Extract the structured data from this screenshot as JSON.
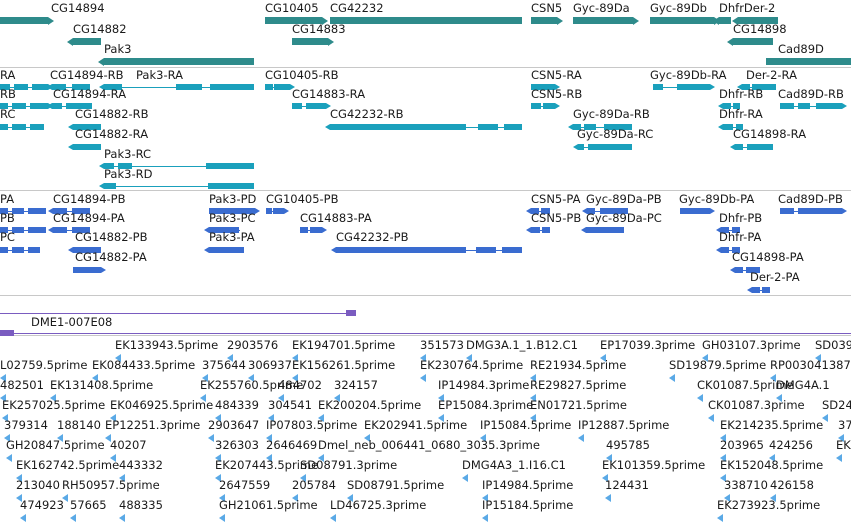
{
  "colors": {
    "gene": "#2e8b8b",
    "transcript": "#1aa0bc",
    "protein": "#3a6cd0",
    "clone": "#7a5cc0",
    "est": "#5aa9e6",
    "separator": "#c8c8c8",
    "text": "#1a1a1a"
  },
  "track_genes": {
    "labels": [
      "CG14894",
      "CG14882",
      "Pak3",
      "CG10405",
      "CG42232",
      "CG14883",
      "CSN5",
      "Gyc-89Da",
      "Gyc-89Db",
      "DhfrDer-2",
      "CG14898",
      "Cad89D"
    ]
  },
  "track_transcripts": {
    "labels": [
      "RA",
      "CG14894-RB",
      "Pak3-RA",
      "CG10405-RB",
      "CSN5-RA",
      "Gyc-89Db-RA",
      "Der-2-RA",
      "RB",
      "CG14894-RA",
      "CG14883-RA",
      "CSN5-RB",
      "Dhfr-RB",
      "Cad89D-RB",
      "RC",
      "CG14882-RB",
      "CG42232-RB",
      "Gyc-89Da-RB",
      "Dhfr-RA",
      "CG14882-RA",
      "Gyc-89Da-RC",
      "CG14898-RA",
      "Pak3-RC",
      "Pak3-RD"
    ]
  },
  "track_proteins": {
    "labels": [
      "PA",
      "CG14894-PB",
      "Pak3-PD",
      "CG10405-PB",
      "CSN5-PA",
      "Gyc-89Da-PB",
      "Gyc-89Db-PA",
      "Cad89D-PB",
      "PB",
      "CG14894-PA",
      "Pak3-PC",
      "CG14883-PA",
      "CSN5-PB",
      "Gyc-89Da-PC",
      "Dhfr-PB",
      "PC",
      "CG14882-PB",
      "Pak3-PA",
      "CG42232-PB",
      "Dhfr-PA",
      "CG14882-PA",
      "CG14898-PA",
      "Der-2-PA"
    ]
  },
  "track_clones": {
    "labels": [
      "DME1-007E08"
    ]
  },
  "track_ests": {
    "labels": [
      "EK133943.5prime",
      "2903576",
      "EK194701.5prime",
      "351573",
      "DMG3A.1_1.B12.C1",
      "EP17039.3prime",
      "GH03107.3prime",
      "SD039",
      "L02759.5prime",
      "EK084433.5prime",
      "375644",
      "306937",
      "EK156261.5prime",
      "EK230764.5prime",
      "RE21934.5prime",
      "SD19879.5prime",
      "RP003041387",
      "482501",
      "EK131408.5prime",
      "EK255760.5prime",
      "484702",
      "324157",
      "IP14984.3prime",
      "RE29827.5prime",
      "CK01087.5prime",
      "DMG4A.1",
      "EK257025.5prime",
      "EK046925.5prime",
      "484339",
      "304541",
      "EK200204.5prime",
      "EP15084.3prime",
      "EN01721.5prime",
      "CK01087.3prime",
      "SD24",
      "379314",
      "188140",
      "EP12251.3prime",
      "2903647",
      "IP07803.5prime",
      "EK202941.5prime",
      "IP15084.5prime",
      "IP12887.5prime",
      "EK214235.5prime",
      "37",
      "GH20847.5prime",
      "40207",
      "326303",
      "2646469",
      "Dmel_neb_006441_0680_3035.3prime",
      "495785",
      "203965",
      "424256",
      "EK",
      "EK162742.5prime",
      "443332",
      "EK207443.5prime",
      "SD08791.3prime",
      "DMG4A3_1.I16.C1",
      "EK101359.5prime",
      "EK152048.5prime",
      "213040",
      "RH50957.5prime",
      "2647559",
      "205784",
      "SD08791.5prime",
      "IP14984.5prime",
      "124431",
      "338710",
      "426158",
      "474923",
      "57665",
      "488335",
      "GH21061.5prime",
      "LD46725.3prime",
      "IP15184.5prime",
      "EK273923.5prime"
    ]
  }
}
